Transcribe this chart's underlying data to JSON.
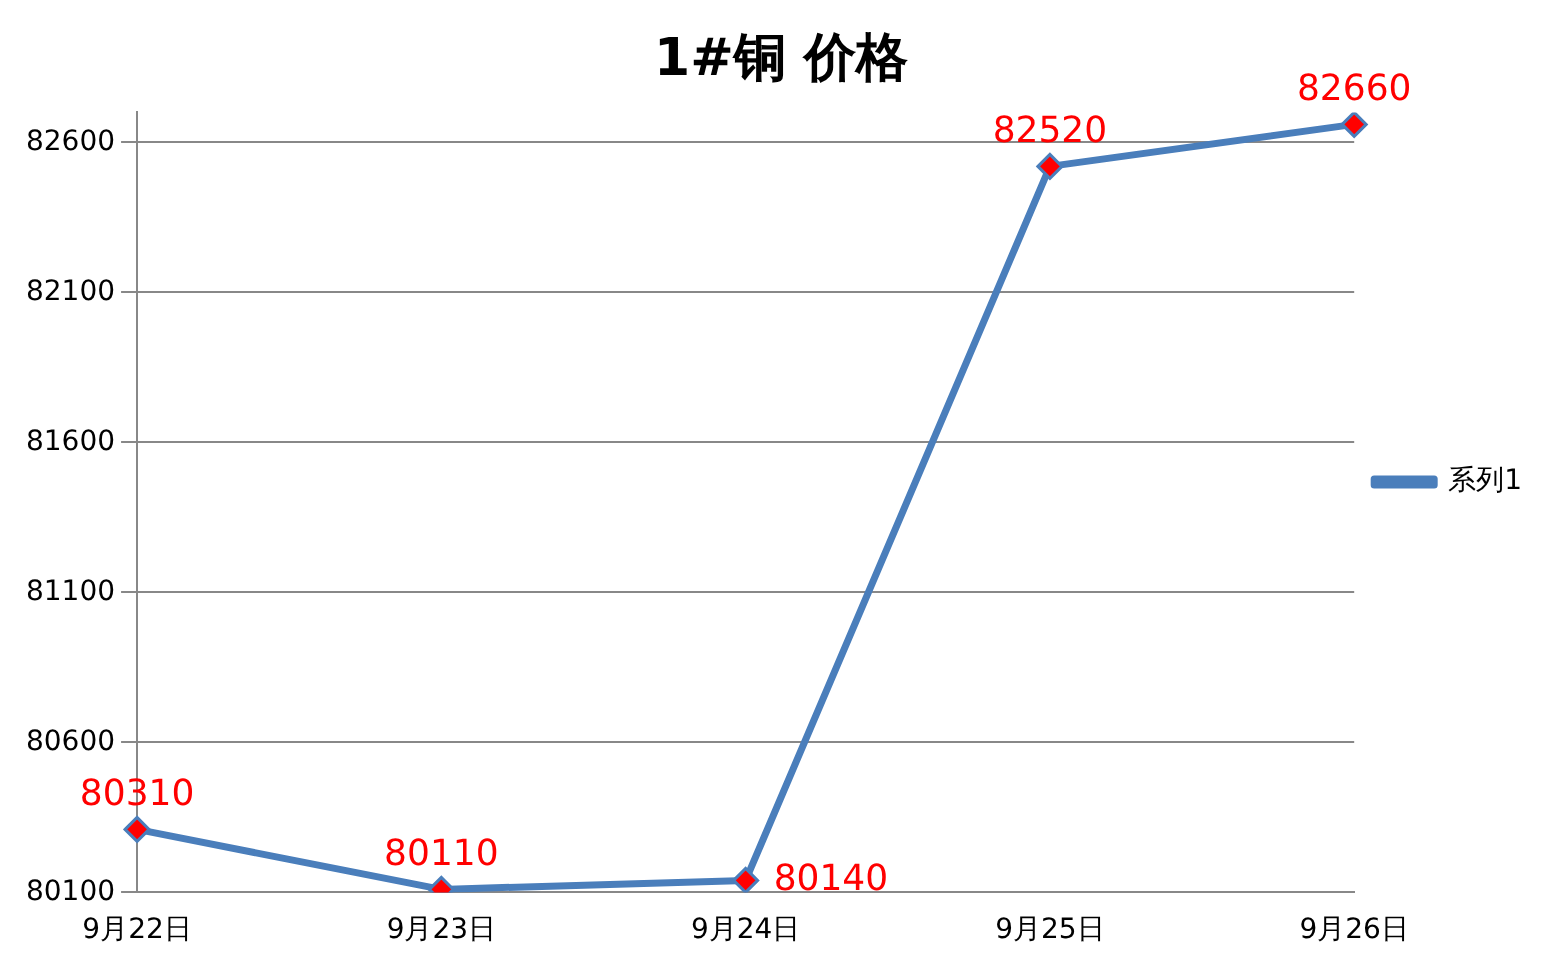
{
  "chart_data": {
    "type": "line",
    "title": "1#铜 价格",
    "categories": [
      "9月22日",
      "9月23日",
      "9月24日",
      "9月25日",
      "9月26日"
    ],
    "series": [
      {
        "name": "系列1",
        "color": "#4a7ebb",
        "values": [
          80310,
          80110,
          80140,
          82520,
          82660
        ]
      }
    ],
    "ylim": [
      80100,
      82700
    ],
    "yticks": [
      80100,
      80600,
      81100,
      81600,
      82100,
      82600
    ],
    "grid": "y",
    "legend": "right",
    "marker": "diamond",
    "line_style": "solid",
    "data_labels": true
  }
}
